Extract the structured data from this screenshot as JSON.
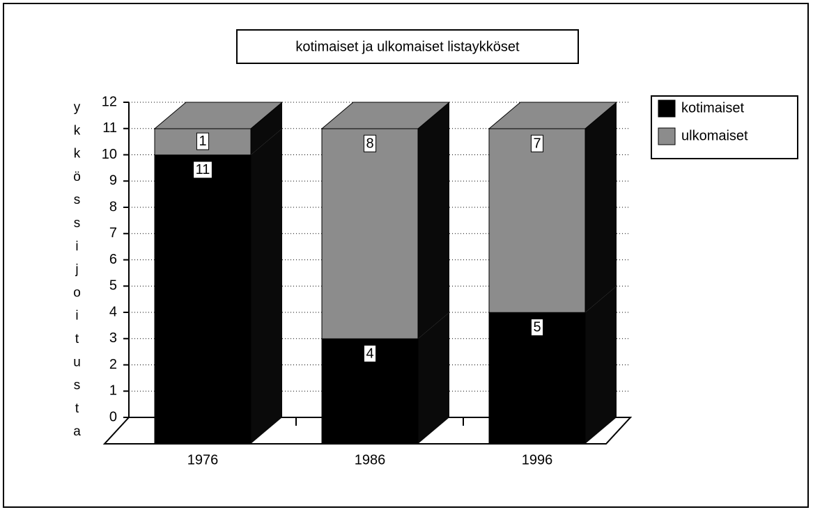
{
  "chart_data": {
    "type": "bar",
    "stacked": true,
    "three_d": true,
    "title": "kotimaiset ja ulkomaiset listaykköset",
    "y_label": "ykkössijoitusta",
    "categories": [
      "1976",
      "1986",
      "1996"
    ],
    "series": [
      {
        "name": "kotimaiset",
        "color": "#000000",
        "values": [
          11,
          4,
          5
        ]
      },
      {
        "name": "ulkomaiset",
        "color": "#8c8c8c",
        "values": [
          1,
          8,
          7
        ]
      }
    ],
    "ylim": [
      0,
      12
    ],
    "yticks": [
      0,
      1,
      2,
      3,
      4,
      5,
      6,
      7,
      8,
      9,
      10,
      11,
      12
    ],
    "grid": true,
    "legend": "right"
  }
}
